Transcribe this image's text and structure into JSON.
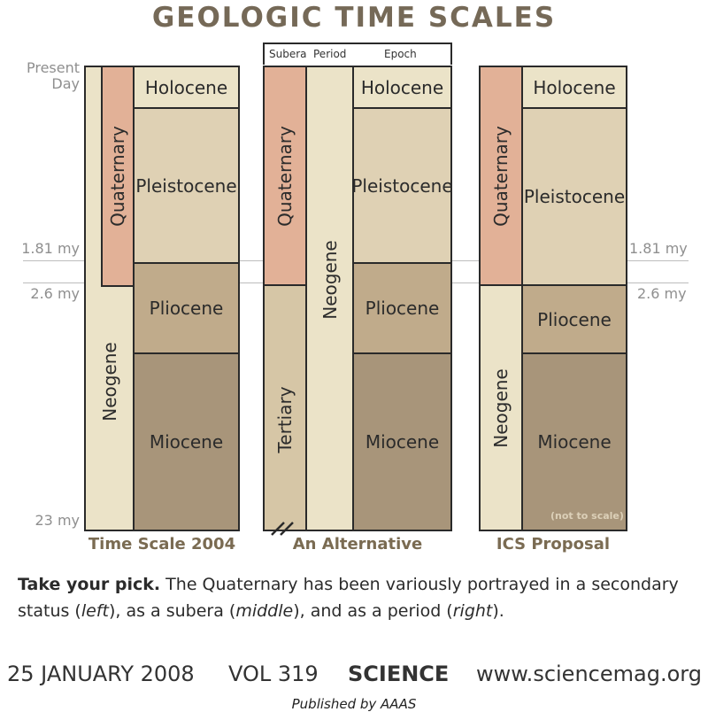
{
  "title": "GEOLOGIC TIME SCALES",
  "left_labels": {
    "present": "Present\nDay",
    "t181": "1.81 my",
    "t26": "2.6 my",
    "t23": "23 my"
  },
  "right_labels": {
    "t181": "1.81 my",
    "t26": "2.6 my"
  },
  "middle_header": {
    "subera": "Subera",
    "period": "Period",
    "epoch": "Epoch"
  },
  "columns": {
    "left": {
      "caption": "Time Scale 2004",
      "quaternary": "Quaternary",
      "neogene": "Neogene",
      "holocene": "Holocene",
      "pleistocene": "Pleistocene",
      "pliocene": "Pliocene",
      "miocene": "Miocene"
    },
    "middle": {
      "caption": "An Alternative",
      "quaternary": "Quaternary",
      "tertiary": "Tertiary",
      "neogene": "Neogene",
      "holocene": "Holocene",
      "pleistocene": "Pleistocene",
      "pliocene": "Pliocene",
      "miocene": "Miocene"
    },
    "right": {
      "caption": "ICS Proposal",
      "quaternary": "Quaternary",
      "neogene": "Neogene",
      "holocene": "Holocene",
      "pleistocene": "Pleistocene",
      "pliocene": "Pliocene",
      "miocene": "Miocene",
      "note": "(not to scale)"
    }
  },
  "caption": {
    "lead": "Take your pick.",
    "text_1": " The Quaternary has been variously portrayed in a secondary status (",
    "left": "left",
    "text_2": "), as a subera (",
    "middle": "middle",
    "text_3": "), and as a period (",
    "right": "right",
    "text_4": ")."
  },
  "footer": {
    "date": "25 JANUARY 2008",
    "volume": "VOL 319",
    "journal": "SCIENCE",
    "url": "www.sciencemag.org",
    "published": "Published by AAAS"
  },
  "colors": {
    "title": "#756957",
    "quaternary": "#e2b197",
    "holocene": "#ebe3c8",
    "pleistocene": "#dfd1b4",
    "pliocene": "#c0ab8b",
    "miocene": "#a8957a",
    "tertiary": "#d6c6a6"
  }
}
